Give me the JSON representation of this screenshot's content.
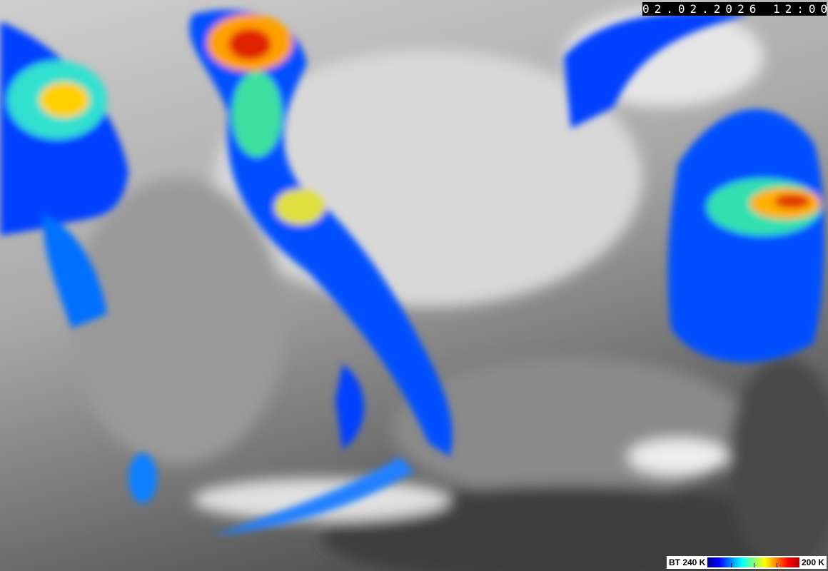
{
  "image": {
    "type": "satellite-infrared",
    "timestamp": "02.02.2026 12:00"
  },
  "legend": {
    "label_left": "BT 240 K",
    "label_right": "200 K",
    "colors": [
      "#00008f",
      "#0000ff",
      "#0080ff",
      "#00ffff",
      "#80ff80",
      "#ffff00",
      "#ff8000",
      "#ff0000",
      "#b00000"
    ]
  }
}
